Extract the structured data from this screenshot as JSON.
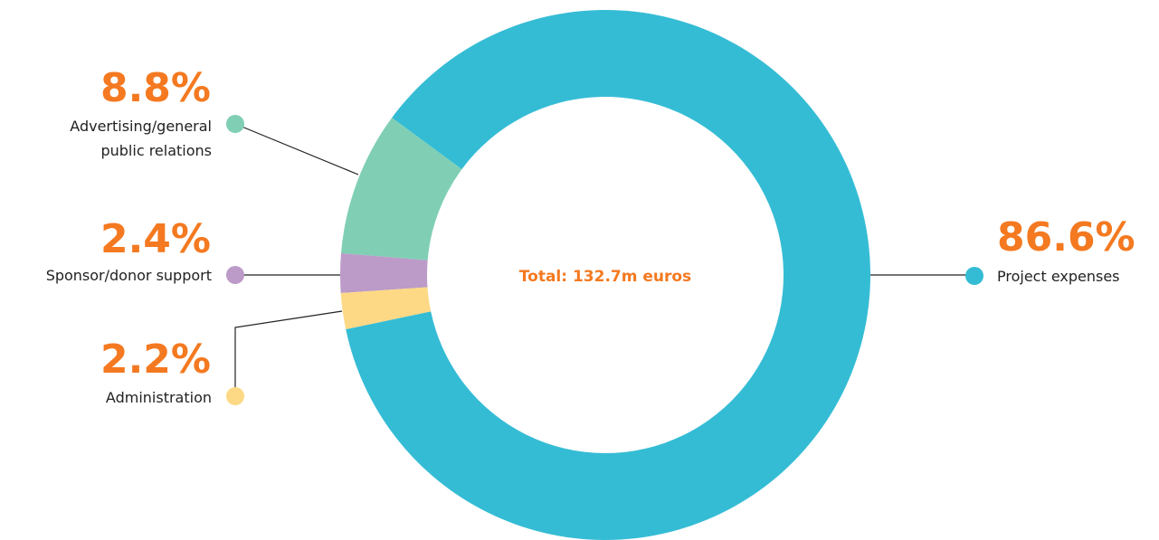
{
  "chart_data": {
    "type": "donut",
    "center_text": "Total: 132.7m euros",
    "categories": [
      "Advertising/general public relations",
      "Sponsor/donor support",
      "Administration",
      "Project expenses"
    ],
    "values": [
      8.8,
      2.4,
      2.2,
      86.6
    ],
    "value_labels": [
      "8.8%",
      "2.4%",
      "2.2%",
      "86.6%"
    ],
    "colors": [
      "#80cfb5",
      "#bc9bc8",
      "#fdd985",
      "#35bcd5"
    ],
    "label_color": "#f47920"
  }
}
